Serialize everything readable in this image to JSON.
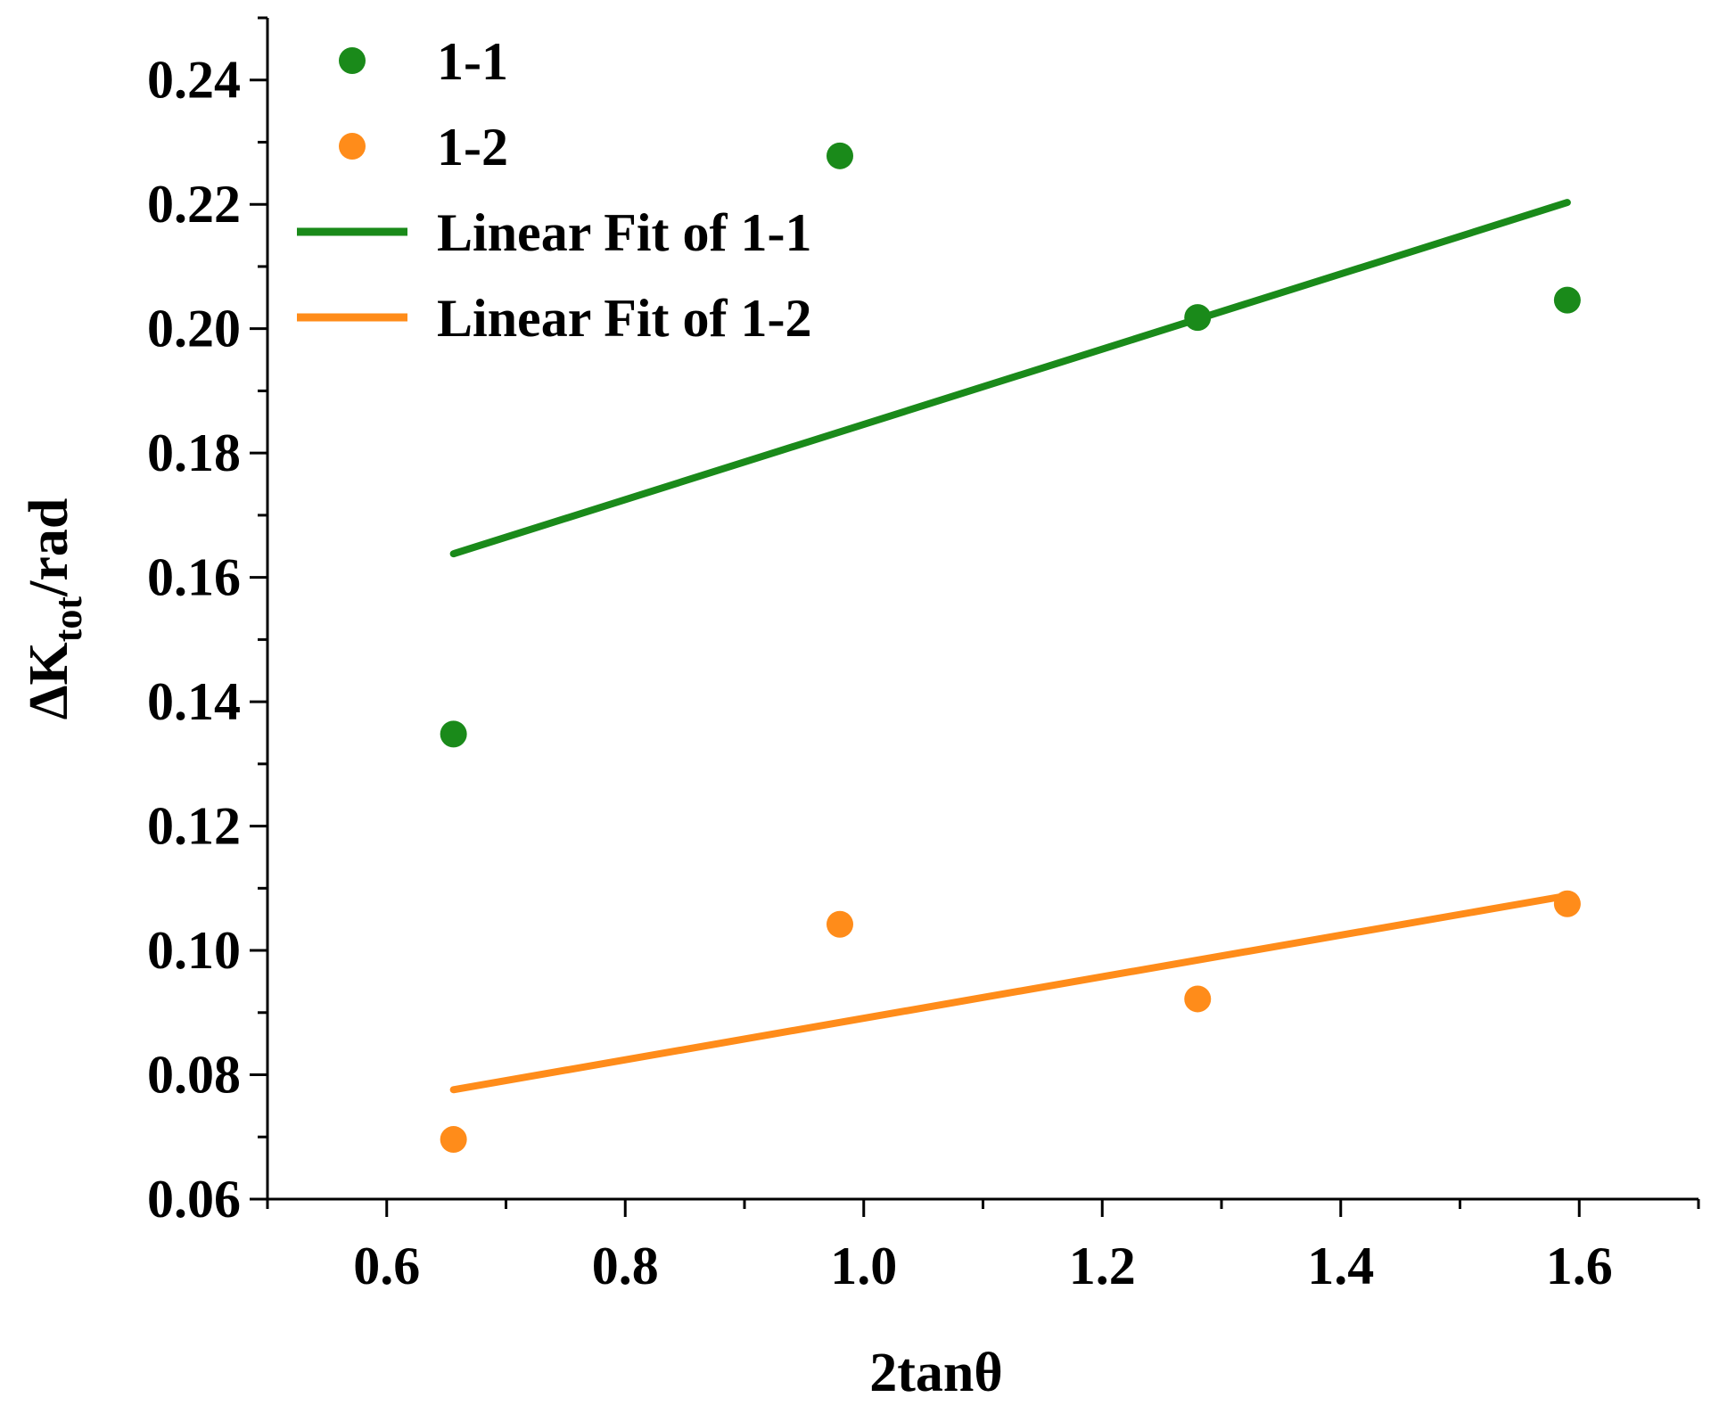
{
  "chart_data": {
    "type": "scatter",
    "title": "",
    "xlabel": "2tanθ",
    "ylabel": {
      "prefix": "ΔK",
      "subscript": "tot",
      "suffix": "/rad"
    },
    "xlim": [
      0.5,
      1.7
    ],
    "ylim": [
      0.06,
      0.25
    ],
    "x_ticks": [
      0.6,
      0.8,
      1.0,
      1.2,
      1.4,
      1.6
    ],
    "x_tick_labels": [
      "0.6",
      "0.8",
      "1.0",
      "1.2",
      "1.4",
      "1.6"
    ],
    "x_minor_ticks": [
      0.5,
      0.7,
      0.9,
      1.1,
      1.3,
      1.5,
      1.7
    ],
    "y_ticks": [
      0.06,
      0.08,
      0.1,
      0.12,
      0.14,
      0.16,
      0.18,
      0.2,
      0.22,
      0.24
    ],
    "y_tick_labels": [
      "0.06",
      "0.08",
      "0.10",
      "0.12",
      "0.14",
      "0.16",
      "0.18",
      "0.20",
      "0.22",
      "0.24"
    ],
    "y_minor_ticks": [
      0.07,
      0.09,
      0.11,
      0.13,
      0.15,
      0.17,
      0.19,
      0.21,
      0.23,
      0.25
    ],
    "grid": false,
    "legend_position": "top-left",
    "series": [
      {
        "name": "1-1",
        "kind": "scatter",
        "color": "#1a8a1a",
        "x": [
          0.656,
          0.98,
          1.28,
          1.59
        ],
        "y": [
          0.1348,
          0.2278,
          0.2018,
          0.2046
        ]
      },
      {
        "name": "1-2",
        "kind": "scatter",
        "color": "#ff8c1a",
        "x": [
          0.656,
          0.98,
          1.28,
          1.59
        ],
        "y": [
          0.0696,
          0.1042,
          0.0922,
          0.1075
        ]
      },
      {
        "name": "Linear Fit of 1-1",
        "kind": "line",
        "color": "#1a8a1a",
        "x": [
          0.656,
          1.59
        ],
        "y": [
          0.1638,
          0.2203
        ]
      },
      {
        "name": "Linear Fit of 1-2",
        "kind": "line",
        "color": "#ff8c1a",
        "x": [
          0.656,
          1.59
        ],
        "y": [
          0.0776,
          0.1088
        ]
      }
    ]
  }
}
